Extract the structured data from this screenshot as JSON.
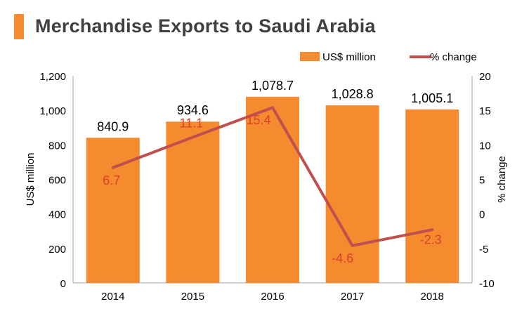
{
  "title": "Merchandise Exports to Saudi Arabia",
  "colors": {
    "accent": "#f58a2f",
    "bar": "#f58a2f",
    "line": "#c0504d",
    "line_label": "#d9412b",
    "text": "#000000",
    "title": "#404040",
    "axis": "#a6a6a6"
  },
  "chart_data": {
    "type": "bar",
    "title": "Merchandise Exports to Saudi Arabia",
    "categories": [
      "2014",
      "2015",
      "2016",
      "2017",
      "2018"
    ],
    "series": [
      {
        "name": "US$ million",
        "type": "bar",
        "axis": "left",
        "values": [
          840.9,
          934.6,
          1078.7,
          1028.8,
          1005.1
        ],
        "labels": [
          "840.9",
          "934.6",
          "1,078.7",
          "1,028.8",
          "1,005.1"
        ]
      },
      {
        "name": "% change",
        "type": "line",
        "axis": "right",
        "values": [
          6.7,
          11.1,
          15.4,
          -4.6,
          -2.3
        ],
        "labels": [
          "6.7",
          "11.1",
          "15.4",
          "-4.6",
          "-2.3"
        ]
      }
    ],
    "ylabel": "US$ million",
    "ylabel_right": "% change",
    "ylim": [
      0,
      1200
    ],
    "ylim_right": [
      -10,
      20
    ],
    "yticks": [
      0,
      200,
      400,
      600,
      800,
      1000,
      1200
    ],
    "yticks_labels": [
      "0",
      "200",
      "400",
      "600",
      "800",
      "1,000",
      "1,200"
    ],
    "yticks_right": [
      -10,
      -5,
      0,
      5,
      10,
      15,
      20
    ],
    "yticks_right_labels": [
      "-10",
      "-5",
      "0",
      "5",
      "10",
      "15",
      "20"
    ],
    "legend_position": "top-right",
    "grid": false
  }
}
